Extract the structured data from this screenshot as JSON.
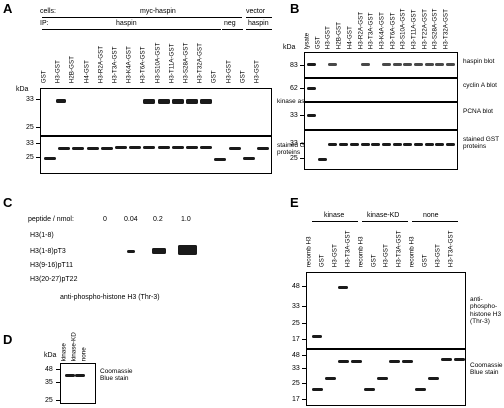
{
  "panels": {
    "A": {
      "label": "A",
      "cells_label": "cells:",
      "ip_label": "IP:",
      "myc_haspin": "myc-haspin",
      "vector": "vector",
      "ip_haspin": "haspin",
      "ip_neg": "neg",
      "ip_haspin2": "haspin",
      "lanes": [
        "GST",
        "H3-GST",
        "H2B-GST",
        "H4-GST",
        "H3-R2A-GST",
        "H3-T3A-GST",
        "H3-K4A-GST",
        "H3-T6A-GST",
        "H3-S10A-GST",
        "H3-T11A-GST",
        "H3-S28A-GST",
        "H3-T32A-GST",
        "GST",
        "H3-GST",
        "GST",
        "H3-GST"
      ],
      "kda": "kDa",
      "blot1_markers": [
        "33",
        "25"
      ],
      "blot2_markers": [
        "33",
        "25"
      ],
      "blot1_label": "kinase assay",
      "blot2_label": "stained GST proteins"
    },
    "B": {
      "label": "B",
      "lanes": [
        "lysate",
        "GST",
        "H3-GST",
        "H2B-GST",
        "H4-GST",
        "H3-R2A-GST",
        "H3-T3A-GST",
        "H3-K4A-GST",
        "H3-T6A-GST",
        "H3-S10A-GST",
        "H3-T11A-GST",
        "H3-T22A-GST",
        "H3-S28A-GST",
        "H3-T32A-GST"
      ],
      "kda": "kDa",
      "blot_markers": [
        [
          "83"
        ],
        [
          "62"
        ],
        [
          "33"
        ],
        [
          "33",
          "25"
        ]
      ],
      "blot_labels": [
        "haspin blot",
        "cyclin A blot",
        "PCNA blot",
        "stained GST proteins"
      ]
    },
    "C": {
      "label": "C",
      "peptide_label": "peptide / nmol:",
      "amounts": [
        "0",
        "0.04",
        "0.2",
        "1.0"
      ],
      "rows": [
        "H3(1-8)",
        "H3(1-8)pT3",
        "H3(9-16)pT11",
        "H3(20-27)pT22"
      ],
      "caption": "anti-phospho-histone H3 (Thr-3)"
    },
    "D": {
      "label": "D",
      "kda": "kDa",
      "lanes": [
        "kinase",
        "kinase-KD",
        "none"
      ],
      "markers": [
        "48",
        "35",
        "25"
      ],
      "blot_label": "Coomassie Blue stain"
    },
    "E": {
      "label": "E",
      "groups": [
        "kinase",
        "kinase-KD",
        "none"
      ],
      "lanes": [
        "recomb H3",
        "GST",
        "H3-GST",
        "H3-T3A-GST",
        "recomb H3",
        "GST",
        "H3-GST",
        "H3-T3A-GST",
        "recomb H3",
        "GST",
        "H3-GST",
        "H3-T3A-GST"
      ],
      "blot1_markers": [
        "48",
        "33",
        "25",
        "17"
      ],
      "blot2_markers": [
        "48",
        "33",
        "25",
        "17"
      ],
      "blot1_label": "anti-phospho-histone H3 (Thr-3)",
      "blot2_label": "Coomassie Blue stain"
    }
  }
}
